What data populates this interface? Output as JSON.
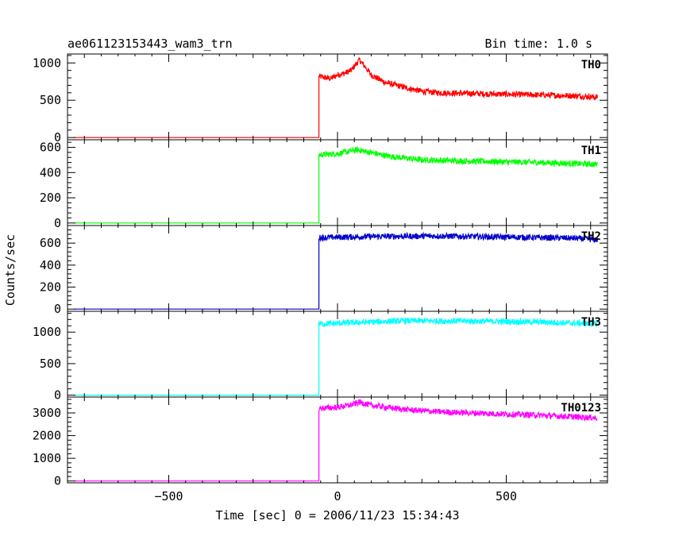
{
  "chart_data": {
    "type": "line",
    "title": "ae061123153443_wam3_trn",
    "subtitle": "Bin time: 1.0 s",
    "xlabel": "Time [sec] 0 = 2006/11/23 15:34:43",
    "ylabel": "Counts/sec",
    "xlim": [
      -800,
      800
    ],
    "x_ticks": [
      -500,
      0,
      500
    ],
    "grid": false,
    "panels": [
      {
        "name": "TH0",
        "color": "#ff0000",
        "ylim": [
          -30,
          1120
        ],
        "y_ticks": [
          0,
          500,
          1000
        ],
        "points": [
          [
            -780,
            0
          ],
          [
            -55,
            0
          ],
          [
            -55,
            820
          ],
          [
            -20,
            790
          ],
          [
            0,
            840
          ],
          [
            20,
            860
          ],
          [
            40,
            900
          ],
          [
            65,
            1040
          ],
          [
            80,
            960
          ],
          [
            100,
            840
          ],
          [
            140,
            740
          ],
          [
            200,
            670
          ],
          [
            250,
            620
          ],
          [
            300,
            600
          ],
          [
            400,
            590
          ],
          [
            500,
            580
          ],
          [
            600,
            570
          ],
          [
            700,
            560
          ],
          [
            770,
            540
          ]
        ]
      },
      {
        "name": "TH1",
        "color": "#00ff00",
        "ylim": [
          -20,
          660
        ],
        "y_ticks": [
          0,
          200,
          400,
          600
        ],
        "points": [
          [
            -780,
            0
          ],
          [
            -55,
            0
          ],
          [
            -55,
            540
          ],
          [
            0,
            550
          ],
          [
            60,
            580
          ],
          [
            150,
            530
          ],
          [
            250,
            500
          ],
          [
            400,
            490
          ],
          [
            600,
            480
          ],
          [
            770,
            465
          ]
        ]
      },
      {
        "name": "TH2",
        "color": "#0000cc",
        "ylim": [
          -20,
          760
        ],
        "y_ticks": [
          0,
          200,
          400,
          600
        ],
        "points": [
          [
            -780,
            0
          ],
          [
            -55,
            0
          ],
          [
            -55,
            650
          ],
          [
            100,
            660
          ],
          [
            300,
            665
          ],
          [
            500,
            655
          ],
          [
            700,
            645
          ],
          [
            770,
            630
          ]
        ]
      },
      {
        "name": "TH3",
        "color": "#00ffff",
        "ylim": [
          -30,
          1330
        ],
        "y_ticks": [
          0,
          500,
          1000
        ],
        "points": [
          [
            -780,
            0
          ],
          [
            -55,
            0
          ],
          [
            -55,
            1130
          ],
          [
            50,
            1150
          ],
          [
            200,
            1180
          ],
          [
            400,
            1175
          ],
          [
            600,
            1160
          ],
          [
            770,
            1130
          ]
        ]
      },
      {
        "name": "TH0123",
        "color": "#ff00ff",
        "ylim": [
          -80,
          3700
        ],
        "y_ticks": [
          0,
          1000,
          2000,
          3000
        ],
        "points": [
          [
            -780,
            0
          ],
          [
            -55,
            0
          ],
          [
            -55,
            3200
          ],
          [
            0,
            3250
          ],
          [
            40,
            3350
          ],
          [
            65,
            3480
          ],
          [
            100,
            3330
          ],
          [
            200,
            3150
          ],
          [
            300,
            3050
          ],
          [
            400,
            3000
          ],
          [
            500,
            2950
          ],
          [
            600,
            2900
          ],
          [
            700,
            2830
          ],
          [
            770,
            2780
          ]
        ]
      }
    ]
  }
}
